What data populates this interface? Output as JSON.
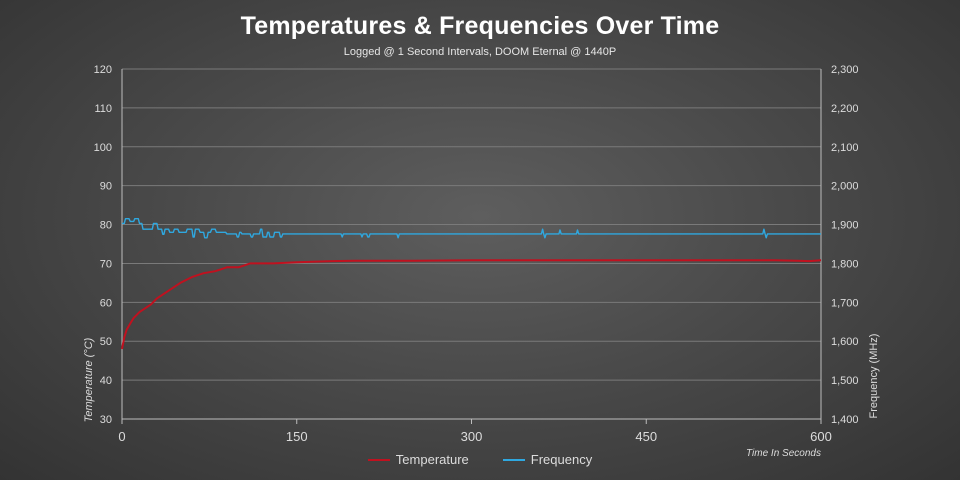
{
  "chart_data": {
    "type": "line",
    "title": "Temperatures & Frequencies Over Time",
    "subtitle": "Logged @ 1 Second Intervals, DOOM Eternal @ 1440P",
    "xlabel": "Time In Seconds",
    "ylabel_left": "Temperature (°C)",
    "ylabel_right": "Frequency  (MHz)",
    "xlim": [
      0,
      600
    ],
    "ylim_left": [
      30,
      120
    ],
    "ylim_right": [
      1400,
      2300
    ],
    "x_ticks": [
      "0",
      "150",
      "300",
      "450",
      "600"
    ],
    "y_ticks_left": [
      "30",
      "40",
      "50",
      "60",
      "70",
      "80",
      "90",
      "100",
      "110",
      "120"
    ],
    "y_ticks_right": [
      "1,400",
      "1,500",
      "1,600",
      "1,700",
      "1,800",
      "1,900",
      "2,000",
      "2,100",
      "2,200",
      "2,300"
    ],
    "grid": true,
    "legend_position": "bottom",
    "series": [
      {
        "name": "Temperature",
        "axis": "left",
        "color": "#c0111f",
        "x": [
          0,
          2,
          4,
          6,
          8,
          10,
          15,
          20,
          25,
          30,
          40,
          50,
          60,
          70,
          80,
          85,
          90,
          100,
          105,
          110,
          120,
          130,
          150,
          160,
          170,
          180,
          200,
          250,
          300,
          400,
          500,
          560,
          580,
          590,
          600
        ],
        "y": [
          48,
          51,
          53,
          54,
          55,
          56,
          57.5,
          58.5,
          59.5,
          61,
          63,
          65,
          66.5,
          67.5,
          68,
          68.5,
          69,
          69,
          69.5,
          70,
          70,
          70,
          70.3,
          70.4,
          70.5,
          70.6,
          70.7,
          70.7,
          70.8,
          70.8,
          70.8,
          70.8,
          70.7,
          70.6,
          70.8
        ]
      },
      {
        "name": "Frequency",
        "axis": "right",
        "color": "#2fa8e0",
        "x": [
          0,
          2,
          3,
          6,
          7,
          10,
          11,
          14,
          15,
          17,
          18,
          26,
          27,
          30,
          31,
          34,
          35,
          36,
          37,
          40,
          41,
          44,
          45,
          48,
          49,
          55,
          56,
          60,
          61,
          62,
          63,
          66,
          67,
          70,
          71,
          73,
          74,
          76,
          77,
          80,
          81,
          89,
          90,
          98,
          99,
          100,
          101,
          102,
          103,
          110,
          111,
          112,
          113,
          118,
          119,
          120,
          121,
          124,
          125,
          126,
          127,
          130,
          131,
          135,
          136,
          137,
          138,
          170,
          188,
          189,
          190,
          205,
          206,
          207,
          210,
          211,
          212,
          213,
          236,
          237,
          238,
          360,
          361,
          362,
          363,
          364,
          365,
          375,
          376,
          377,
          390,
          391,
          392,
          550,
          551,
          552,
          553,
          554,
          555,
          600
        ],
        "y": [
          1903,
          1903,
          1915,
          1915,
          1908,
          1908,
          1915,
          1915,
          1903,
          1903,
          1888,
          1888,
          1903,
          1903,
          1888,
          1888,
          1875,
          1875,
          1888,
          1888,
          1880,
          1880,
          1888,
          1888,
          1880,
          1880,
          1888,
          1888,
          1868,
          1868,
          1888,
          1888,
          1880,
          1880,
          1866,
          1866,
          1880,
          1880,
          1888,
          1888,
          1880,
          1880,
          1876,
          1876,
          1868,
          1868,
          1880,
          1880,
          1876,
          1876,
          1868,
          1868,
          1876,
          1876,
          1888,
          1888,
          1868,
          1868,
          1880,
          1880,
          1868,
          1868,
          1880,
          1880,
          1868,
          1868,
          1876,
          1876,
          1876,
          1868,
          1876,
          1876,
          1868,
          1876,
          1876,
          1868,
          1868,
          1876,
          1876,
          1866,
          1876,
          1876,
          1888,
          1876,
          1866,
          1876,
          1876,
          1876,
          1886,
          1876,
          1876,
          1886,
          1876,
          1876,
          1888,
          1876,
          1866,
          1876,
          1876,
          1876
        ]
      }
    ]
  }
}
